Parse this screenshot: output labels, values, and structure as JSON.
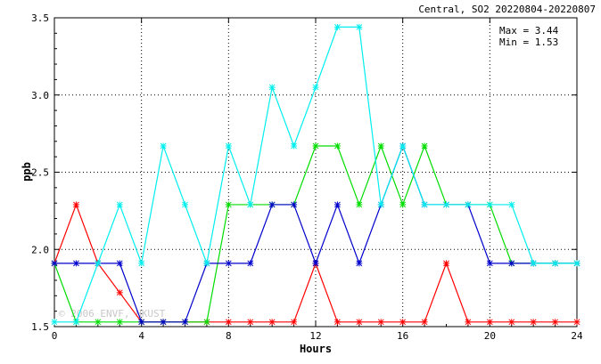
{
  "chart_data": {
    "type": "line",
    "title": "Central, SO2 20220804-20220807",
    "xlabel": "Hours",
    "ylabel": "ppb",
    "xlim": [
      0,
      24
    ],
    "ylim": [
      1.5,
      3.5
    ],
    "x_ticks": [
      0,
      4,
      8,
      12,
      16,
      20,
      24
    ],
    "y_ticks": [
      1.5,
      2.0,
      2.5,
      3.0,
      3.5
    ],
    "y_tick_labels": [
      "1.5",
      "2.0",
      "2.5",
      "3.0",
      "3.5"
    ],
    "grid": true,
    "annotations": [
      "Max = 3.44",
      "Min = 1.53"
    ],
    "watermark": "© 2006 ENVF, HKUST",
    "x": [
      0,
      1,
      2,
      3,
      4,
      5,
      6,
      7,
      8,
      9,
      10,
      11,
      12,
      13,
      14,
      15,
      16,
      17,
      18,
      19,
      20,
      21,
      22,
      23,
      24
    ],
    "series": [
      {
        "color": "#ff0000",
        "values": [
          1.91,
          2.29,
          1.91,
          1.72,
          1.53,
          1.53,
          1.53,
          1.53,
          1.53,
          1.53,
          1.53,
          1.53,
          1.91,
          1.53,
          1.53,
          1.53,
          1.53,
          1.53,
          1.91,
          1.53,
          1.53,
          1.53,
          1.53,
          1.53,
          1.53
        ]
      },
      {
        "color": "#00dd00",
        "values": [
          1.91,
          1.53,
          1.53,
          1.53,
          1.53,
          1.53,
          1.53,
          1.53,
          2.29,
          2.29,
          2.29,
          2.29,
          2.67,
          2.67,
          2.29,
          2.67,
          2.29,
          2.67,
          2.29,
          2.29,
          2.29,
          1.91,
          1.91,
          1.91,
          1.91
        ]
      },
      {
        "color": "#0000cc",
        "values": [
          1.91,
          1.91,
          1.91,
          1.91,
          1.53,
          1.53,
          1.53,
          1.91,
          1.91,
          1.91,
          2.29,
          2.29,
          1.91,
          2.29,
          1.91,
          2.29,
          2.67,
          2.29,
          2.29,
          2.29,
          1.91,
          1.91,
          1.91,
          1.91,
          1.91
        ]
      },
      {
        "color": "#00eeee",
        "values": [
          1.53,
          1.53,
          1.91,
          2.29,
          1.91,
          2.67,
          2.29,
          1.91,
          2.67,
          2.29,
          3.05,
          2.67,
          3.05,
          3.44,
          3.44,
          2.29,
          2.67,
          2.29,
          2.29,
          2.29,
          2.29,
          2.29,
          1.91,
          1.91,
          1.91
        ]
      }
    ]
  }
}
